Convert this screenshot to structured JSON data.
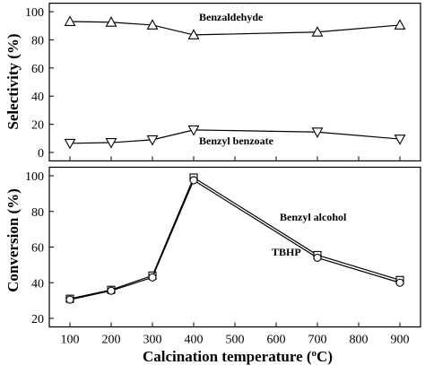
{
  "chart_data": [
    {
      "type": "line",
      "ylabel": "Selectivity (%)",
      "ylim": [
        0,
        100
      ],
      "yticks": [
        0,
        20,
        40,
        60,
        80,
        100
      ],
      "x": [
        100,
        200,
        300,
        400,
        700,
        900
      ],
      "series": [
        {
          "name": "Benzaldehyde",
          "marker": "triangle-up",
          "values": [
            93,
            92.5,
            90.5,
            83.5,
            85.5,
            90.5
          ]
        },
        {
          "name": "Benzyl benzoate",
          "marker": "triangle-down",
          "values": [
            6.5,
            7,
            9,
            16,
            14.5,
            9.5
          ]
        }
      ],
      "grid": false
    },
    {
      "type": "line",
      "xlabel": "Calcination temperature (",
      "xlabel_unit": "o",
      "xlabel_suffix": "C)",
      "ylabel": "Conversion (%)",
      "ylim": [
        20,
        100
      ],
      "yticks": [
        20,
        40,
        60,
        80,
        100
      ],
      "xlim": [
        50,
        950
      ],
      "xticks": [
        100,
        200,
        300,
        400,
        500,
        600,
        700,
        800,
        900
      ],
      "x": [
        100,
        200,
        300,
        400,
        700,
        900
      ],
      "series": [
        {
          "name": "Benzyl alcohol",
          "marker": "square",
          "values": [
            31,
            36,
            44,
            99,
            55.5,
            41.5
          ]
        },
        {
          "name": "TBHP",
          "marker": "circle",
          "values": [
            30.5,
            35.5,
            43,
            97.5,
            54,
            40
          ]
        }
      ],
      "grid": false
    }
  ]
}
